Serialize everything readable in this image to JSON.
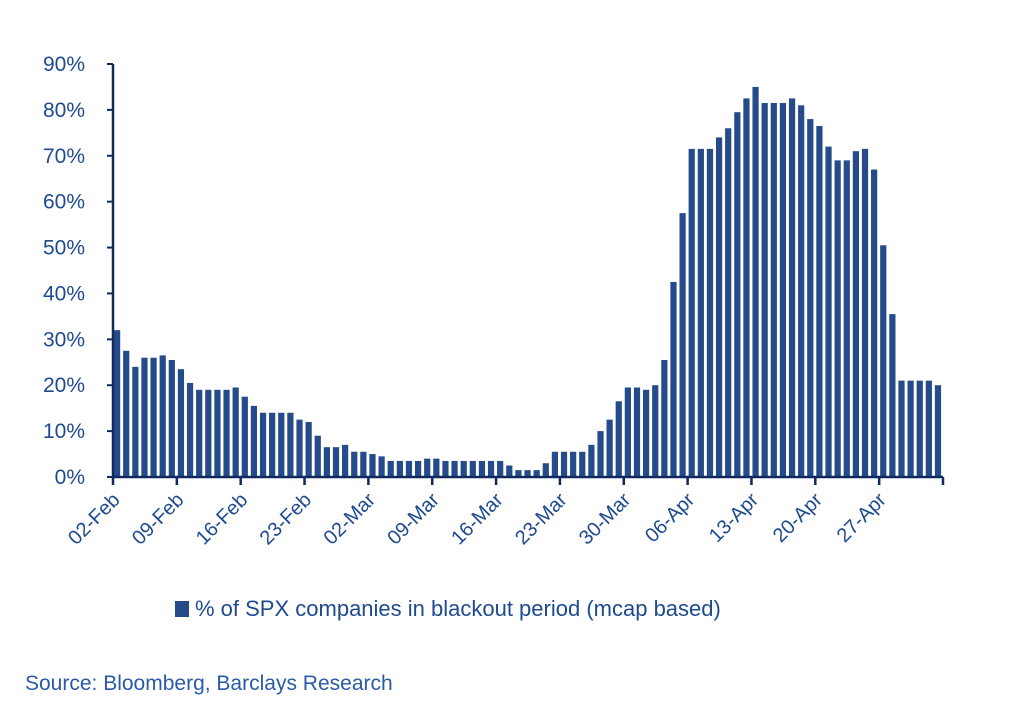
{
  "chart_data": {
    "type": "bar",
    "title": "",
    "xlabel": "",
    "ylabel": "",
    "ylim": [
      0,
      90
    ],
    "y_ticks": [
      0,
      10,
      20,
      30,
      40,
      50,
      60,
      70,
      80,
      90
    ],
    "y_tick_format": "%",
    "x_tick_labels": [
      "02-Feb",
      "09-Feb",
      "16-Feb",
      "23-Feb",
      "02-Mar",
      "09-Mar",
      "16-Mar",
      "23-Mar",
      "30-Mar",
      "06-Apr",
      "13-Apr",
      "20-Apr",
      "27-Apr"
    ],
    "x_tick_every_n_bars": 7,
    "grid": false,
    "legend_position": "bottom",
    "series": [
      {
        "name": "% of SPX companies in blackout period (mcap based)",
        "color": "#254b8a",
        "values": [
          32,
          27.5,
          24,
          26,
          26,
          26.5,
          25.5,
          23.5,
          20.5,
          19,
          19,
          19,
          19,
          19.5,
          17.5,
          15.5,
          14,
          14,
          14,
          14,
          12.5,
          12,
          9,
          6.5,
          6.5,
          7,
          5.5,
          5.5,
          5,
          4.5,
          3.5,
          3.5,
          3.5,
          3.5,
          4,
          4,
          3.5,
          3.5,
          3.5,
          3.5,
          3.5,
          3.5,
          3.5,
          2.5,
          1.5,
          1.5,
          1.5,
          3,
          5.5,
          5.5,
          5.5,
          5.5,
          7,
          10,
          12.5,
          16.5,
          19.5,
          19.5,
          19,
          20,
          25.5,
          42.5,
          57.5,
          71.5,
          71.5,
          71.5,
          74,
          76,
          79.5,
          82.5,
          85,
          81.5,
          81.5,
          81.5,
          82.5,
          81,
          78,
          76.5,
          72,
          69,
          69,
          71,
          71.5,
          67,
          50.5,
          35.5,
          21,
          21,
          21,
          21,
          20
        ]
      }
    ]
  },
  "legend_label": "% of SPX companies in blackout period (mcap based)",
  "source": "Source: Bloomberg, Barclays Research"
}
